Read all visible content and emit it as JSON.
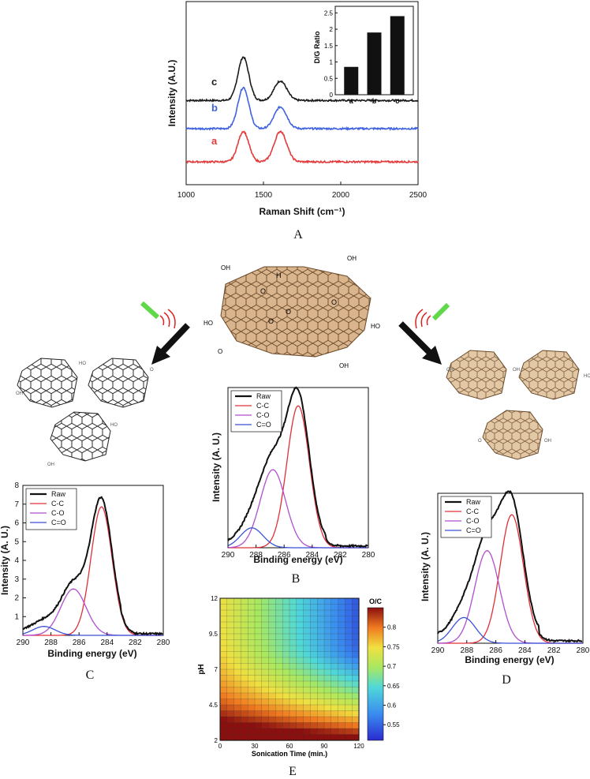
{
  "chart_data": [
    {
      "id": "A",
      "type": "line",
      "panel_label": "A",
      "xlabel": "Raman Shift (cm⁻¹)",
      "ylabel": "Intensity (A.U.)",
      "xlim": [
        1000,
        2500
      ],
      "xticks": [
        "1000",
        "1500",
        "2000",
        "2500"
      ],
      "series": [
        {
          "name": "c",
          "color": "#1a1a1a",
          "offset": 2.0,
          "d_height": 1.0,
          "g_height": 0.45
        },
        {
          "name": "b",
          "color": "#3f62e0",
          "offset": 1.0,
          "d_height": 0.95,
          "g_height": 0.5
        },
        {
          "name": "a",
          "color": "#e33b3b",
          "offset": 0.0,
          "d_height": 0.7,
          "g_height": 0.7
        }
      ],
      "inset": {
        "type": "bar",
        "ylabel": "D/G Ratio",
        "categories": [
          "a",
          "b",
          "c"
        ],
        "values": [
          0.85,
          1.9,
          2.4
        ],
        "ylim": [
          0,
          2.7
        ],
        "yticks": [
          "0",
          "0.5",
          "1",
          "1.5",
          "2",
          "2.5"
        ]
      }
    },
    {
      "id": "B",
      "type": "line",
      "panel_label": "B",
      "xlabel": "Binding energy (eV)",
      "ylabel": "Intensity (A. U.)",
      "xlim": [
        290,
        280
      ],
      "xticks": [
        "290",
        "288",
        "286",
        "284",
        "282",
        "280"
      ],
      "legend": [
        "Raw",
        "C-C",
        "C-O",
        "C=O"
      ],
      "peaks": [
        {
          "name": "C-C",
          "center": 285.0,
          "height": 1.0,
          "width": 0.8
        },
        {
          "name": "C-O",
          "center": 286.8,
          "height": 0.55,
          "width": 0.9
        },
        {
          "name": "C=O",
          "center": 288.3,
          "height": 0.14,
          "width": 0.8
        }
      ]
    },
    {
      "id": "C",
      "type": "line",
      "panel_label": "C",
      "xlabel": "Binding energy (eV)",
      "ylabel": "Intensity (A. U.)",
      "xlim": [
        290,
        280
      ],
      "ylim": [
        0,
        8
      ],
      "xticks": [
        "290",
        "288",
        "286",
        "284",
        "282",
        "280"
      ],
      "yticks": [
        "1",
        "2",
        "3",
        "4",
        "5",
        "6",
        "7",
        "8"
      ],
      "legend": [
        "Raw",
        "C-C",
        "C-O",
        "C=O"
      ],
      "peaks": [
        {
          "name": "C-C",
          "center": 284.4,
          "height": 7.2,
          "width": 0.75
        },
        {
          "name": "C-O",
          "center": 286.4,
          "height": 2.6,
          "width": 0.9
        },
        {
          "name": "C=O",
          "center": 288.5,
          "height": 0.5,
          "width": 0.8
        }
      ]
    },
    {
      "id": "D",
      "type": "line",
      "panel_label": "D",
      "xlabel": "Binding energy (eV)",
      "ylabel": "Intensity (A. U.)",
      "xlim": [
        290,
        280
      ],
      "xticks": [
        "290",
        "288",
        "286",
        "284",
        "282",
        "280"
      ],
      "legend": [
        "Raw",
        "C-C",
        "C-O",
        "C=O"
      ],
      "peaks": [
        {
          "name": "C-C",
          "center": 284.9,
          "height": 1.0,
          "width": 0.8
        },
        {
          "name": "C-O",
          "center": 286.6,
          "height": 0.72,
          "width": 0.85
        },
        {
          "name": "C=O",
          "center": 288.2,
          "height": 0.2,
          "width": 0.8
        }
      ]
    },
    {
      "id": "E",
      "type": "heatmap",
      "panel_label": "E",
      "xlabel": "Sonication Time (min.)",
      "ylabel": "pH",
      "colorbar_label": "O/C",
      "xlim": [
        0,
        120
      ],
      "ylim": [
        2,
        12
      ],
      "xticks": [
        "0",
        "30",
        "60",
        "90",
        "120"
      ],
      "yticks": [
        "2",
        "4.5",
        "7",
        "9.5",
        "12"
      ],
      "colorbar_range": [
        0.51,
        0.85
      ],
      "colorbar_ticks": [
        "0.55",
        "0.6",
        "0.65",
        "0.7",
        "0.75",
        "0.8"
      ]
    }
  ],
  "colors": {
    "raw": "#111111",
    "cc": "#e0303a",
    "co": "#b04fcf",
    "coo": "#3a52d8",
    "graphene_dark": "#333333",
    "graphene_orange": "#c9a074",
    "arrow": "#111111",
    "laser": "#5fd94a"
  },
  "schematic": {
    "center_labels": [
      "O",
      "O",
      "O",
      "O",
      "H"
    ],
    "group_labels": [
      "OH",
      "HO",
      "O",
      "OH",
      "HO",
      "OH"
    ]
  }
}
